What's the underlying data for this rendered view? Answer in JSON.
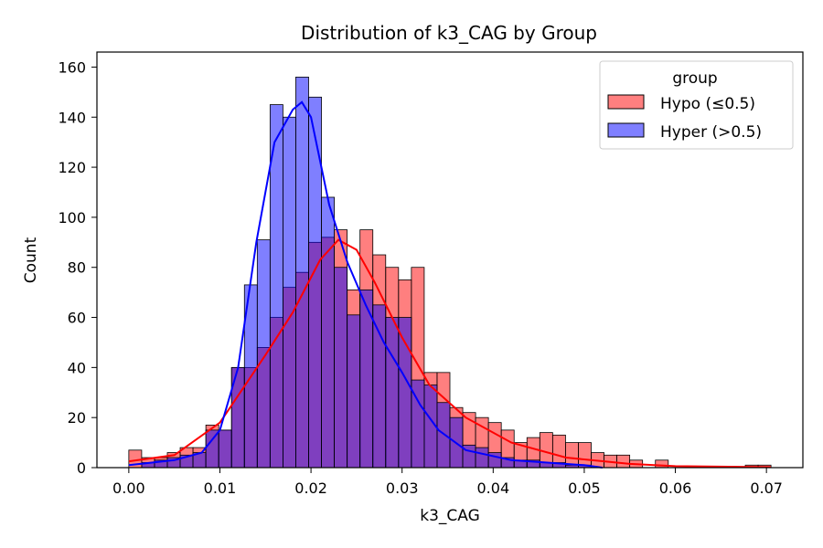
{
  "chart_data": {
    "type": "histogram",
    "title": "Distribution of k3_CAG by Group",
    "xlabel": "k3_CAG",
    "ylabel": "Count",
    "xlim": [
      -0.0035,
      0.074
    ],
    "ylim": [
      0,
      166
    ],
    "xticks": [
      0.0,
      0.01,
      0.02,
      0.03,
      0.04,
      0.05,
      0.06,
      0.07
    ],
    "xtick_labels": [
      "0.00",
      "0.01",
      "0.02",
      "0.03",
      "0.04",
      "0.05",
      "0.06",
      "0.07"
    ],
    "yticks": [
      0,
      20,
      40,
      60,
      80,
      100,
      120,
      140,
      160
    ],
    "ytick_labels": [
      "0",
      "20",
      "40",
      "60",
      "80",
      "100",
      "120",
      "140",
      "160"
    ],
    "grid": false,
    "legend": {
      "title": "group",
      "placement": "upper right"
    },
    "bin_start": 0.0,
    "bin_width": 0.00141,
    "series": [
      {
        "name": "Hypo (≤0.5)",
        "color": "#ff0000",
        "counts": [
          7,
          4,
          4,
          6,
          8,
          8,
          17,
          15,
          40,
          40,
          48,
          60,
          72,
          78,
          90,
          92,
          95,
          71,
          95,
          85,
          80,
          75,
          80,
          38,
          38,
          24,
          22,
          20,
          18,
          15,
          10,
          12,
          14,
          13,
          10,
          10,
          6,
          5,
          5,
          3,
          0,
          3,
          0,
          0,
          0,
          0,
          0,
          0,
          1,
          1,
          0,
          0,
          0,
          0,
          0,
          0,
          0,
          0,
          0,
          0
        ],
        "kde": [
          [
            0.0,
            2.5
          ],
          [
            0.005,
            5
          ],
          [
            0.01,
            18
          ],
          [
            0.015,
            45
          ],
          [
            0.018,
            62
          ],
          [
            0.021,
            83
          ],
          [
            0.023,
            91
          ],
          [
            0.025,
            87
          ],
          [
            0.027,
            74
          ],
          [
            0.03,
            52
          ],
          [
            0.033,
            33
          ],
          [
            0.037,
            20
          ],
          [
            0.042,
            10
          ],
          [
            0.048,
            4
          ],
          [
            0.055,
            1.5
          ],
          [
            0.06,
            0.6
          ],
          [
            0.0705,
            0.2
          ]
        ]
      },
      {
        "name": "Hyper (>0.5)",
        "color": "#0000ff",
        "counts": [
          0,
          2,
          3,
          4,
          5,
          6,
          15,
          15,
          40,
          73,
          91,
          145,
          140,
          156,
          148,
          108,
          80,
          61,
          71,
          65,
          60,
          60,
          35,
          33,
          26,
          20,
          9,
          8,
          6,
          4,
          3,
          3,
          2,
          2,
          1,
          1,
          0,
          0,
          0,
          0,
          0,
          0,
          0,
          0,
          0,
          0,
          0,
          0,
          0,
          0,
          0,
          0,
          0,
          0,
          0,
          0,
          0,
          0,
          0,
          0
        ],
        "kde": [
          [
            0.0,
            1
          ],
          [
            0.005,
            3
          ],
          [
            0.008,
            6
          ],
          [
            0.01,
            15
          ],
          [
            0.012,
            40
          ],
          [
            0.014,
            90
          ],
          [
            0.016,
            130
          ],
          [
            0.018,
            143
          ],
          [
            0.019,
            146
          ],
          [
            0.02,
            140
          ],
          [
            0.022,
            105
          ],
          [
            0.024,
            82
          ],
          [
            0.026,
            65
          ],
          [
            0.028,
            50
          ],
          [
            0.03,
            38
          ],
          [
            0.032,
            25
          ],
          [
            0.034,
            15
          ],
          [
            0.037,
            7
          ],
          [
            0.042,
            3
          ],
          [
            0.05,
            1
          ],
          [
            0.052,
            0
          ]
        ]
      }
    ]
  }
}
